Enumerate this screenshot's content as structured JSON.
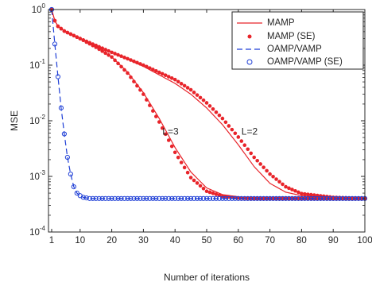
{
  "chart_data": {
    "type": "line",
    "title": "",
    "xlabel": "Number of iterations",
    "ylabel": "MSE",
    "xlim": [
      0,
      100
    ],
    "ylim_log10": [
      -4,
      0
    ],
    "yscale": "log",
    "grid": false,
    "legend_position": "top-right",
    "x_ticks": [
      1,
      10,
      20,
      30,
      40,
      50,
      60,
      70,
      80,
      90,
      100
    ],
    "y_ticks": [
      {
        "exp": 0,
        "base": "10",
        "sup": "0"
      },
      {
        "exp": -1,
        "base": "10",
        "sup": "-1"
      },
      {
        "exp": -2,
        "base": "10",
        "sup": "-2"
      },
      {
        "exp": -3,
        "base": "10",
        "sup": "-3"
      },
      {
        "exp": -4,
        "base": "10",
        "sup": "-4"
      }
    ],
    "legend": [
      {
        "label": "MAMP",
        "color": "#e8242a",
        "style": "solid"
      },
      {
        "label": "MAMP (SE)",
        "color": "#e8242a",
        "style": "dot"
      },
      {
        "label": "OAMP/VAMP",
        "color": "#1f3fd6",
        "style": "dashed"
      },
      {
        "label": "OAMP/VAMP (SE)",
        "color": "#1f3fd6",
        "style": "circle"
      }
    ],
    "annotations": [
      {
        "text": "L=3",
        "x": 36,
        "y": 0.0056
      },
      {
        "text": "L=2",
        "x": 61,
        "y": 0.0056
      }
    ],
    "series": [
      {
        "name": "MAMP L=2",
        "color": "#e8242a",
        "style": "solid",
        "x": [
          1,
          2,
          3,
          5,
          10,
          20,
          30,
          40,
          45,
          50,
          55,
          60,
          65,
          70,
          75,
          80,
          90,
          100
        ],
        "y": [
          1.0,
          0.63,
          0.5,
          0.41,
          0.3,
          0.17,
          0.095,
          0.047,
          0.03,
          0.017,
          0.0085,
          0.0037,
          0.0015,
          0.00075,
          0.00052,
          0.00045,
          0.00041,
          0.0004
        ]
      },
      {
        "name": "MAMP (SE) L=2",
        "color": "#e8242a",
        "style": "dot",
        "x": [
          1,
          2,
          3,
          5,
          10,
          20,
          30,
          40,
          45,
          50,
          55,
          60,
          65,
          70,
          75,
          80,
          90,
          100
        ],
        "y": [
          1.0,
          0.63,
          0.5,
          0.41,
          0.3,
          0.17,
          0.1,
          0.055,
          0.036,
          0.021,
          0.011,
          0.0051,
          0.0022,
          0.0011,
          0.00065,
          0.00049,
          0.00042,
          0.0004
        ]
      },
      {
        "name": "MAMP L=3",
        "color": "#e8242a",
        "style": "solid",
        "x": [
          1,
          2,
          3,
          5,
          10,
          15,
          20,
          25,
          30,
          35,
          40,
          45,
          50,
          55,
          60,
          65,
          70,
          80,
          90,
          100
        ],
        "y": [
          1.0,
          0.63,
          0.5,
          0.41,
          0.3,
          0.21,
          0.14,
          0.075,
          0.032,
          0.011,
          0.0033,
          0.0012,
          0.00062,
          0.00047,
          0.00043,
          0.00041,
          0.0004,
          0.0004,
          0.0004,
          0.0004
        ]
      },
      {
        "name": "MAMP (SE) L=3",
        "color": "#e8242a",
        "style": "dot",
        "x": [
          1,
          2,
          3,
          5,
          10,
          15,
          20,
          25,
          30,
          35,
          40,
          45,
          50,
          55,
          60,
          65,
          70,
          80,
          90,
          100
        ],
        "y": [
          1.0,
          0.63,
          0.5,
          0.41,
          0.3,
          0.21,
          0.14,
          0.072,
          0.03,
          0.0095,
          0.0027,
          0.00095,
          0.00054,
          0.00044,
          0.00041,
          0.0004,
          0.0004,
          0.0004,
          0.0004,
          0.0004
        ]
      },
      {
        "name": "OAMP/VAMP",
        "color": "#1f3fd6",
        "style": "dashed",
        "x": [
          1,
          2,
          3,
          4,
          5,
          6,
          7,
          8,
          9,
          10,
          11,
          12,
          13,
          14,
          15,
          20,
          30,
          40,
          50,
          60,
          70,
          80,
          90,
          100
        ],
        "y": [
          1.0,
          0.24,
          0.062,
          0.017,
          0.0058,
          0.0022,
          0.0011,
          0.00065,
          0.0005,
          0.00045,
          0.00042,
          0.00041,
          0.0004,
          0.0004,
          0.0004,
          0.0004,
          0.0004,
          0.0004,
          0.0004,
          0.0004,
          0.0004,
          0.0004,
          0.0004,
          0.0004
        ]
      },
      {
        "name": "OAMP/VAMP (SE)",
        "color": "#1f3fd6",
        "style": "circle",
        "x": [
          1,
          2,
          3,
          4,
          5,
          6,
          7,
          8,
          9,
          10,
          11,
          12,
          13,
          14,
          15,
          20,
          30,
          40,
          50,
          60,
          70,
          80,
          90,
          100
        ],
        "y": [
          1.0,
          0.24,
          0.062,
          0.017,
          0.0058,
          0.0022,
          0.0011,
          0.00065,
          0.0005,
          0.00045,
          0.00042,
          0.00041,
          0.0004,
          0.0004,
          0.0004,
          0.0004,
          0.0004,
          0.0004,
          0.0004,
          0.0004,
          0.0004,
          0.0004,
          0.0004,
          0.0004
        ]
      }
    ]
  }
}
